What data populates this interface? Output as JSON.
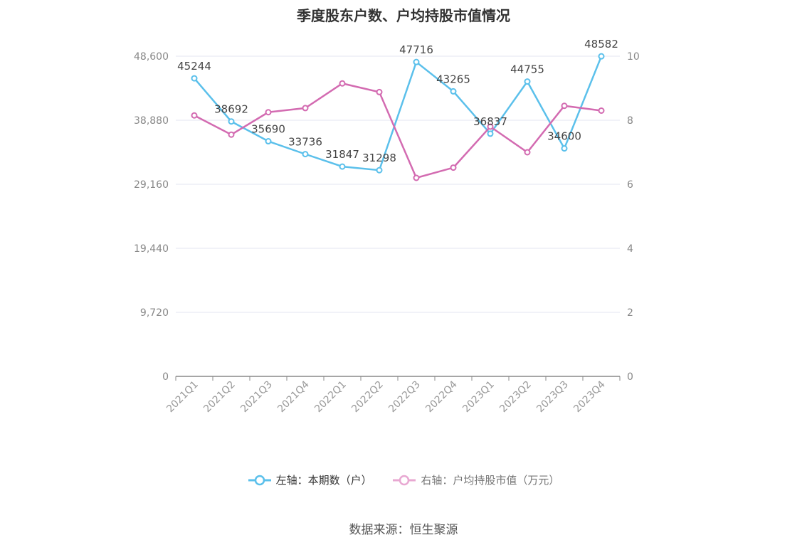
{
  "chart_data": {
    "type": "line",
    "title": "季度股东户数、户均持股市值情况",
    "categories": [
      "2021Q1",
      "2021Q2",
      "2021Q3",
      "2021Q4",
      "2022Q1",
      "2022Q2",
      "2022Q3",
      "2022Q4",
      "2023Q1",
      "2023Q2",
      "2023Q3",
      "2023Q4"
    ],
    "series": [
      {
        "name": "左轴：本期数（户）",
        "axis": "left",
        "color": "#5bc0eb",
        "values": [
          45244,
          38692,
          35690,
          33736,
          31847,
          31298,
          47716,
          43265,
          36837,
          44755,
          34600,
          48582
        ],
        "labels": [
          "45244",
          "38692",
          "35690",
          "33736",
          "31847",
          "31298",
          "47716",
          "43265",
          "36837",
          "44755",
          "34600",
          "48582"
        ]
      },
      {
        "name": "右轴：户均持股市值（万元）",
        "axis": "right",
        "color": "#d36bb1",
        "values": [
          8.15,
          7.55,
          8.25,
          8.38,
          9.15,
          8.88,
          6.2,
          6.52,
          7.8,
          7.0,
          8.45,
          8.3
        ]
      }
    ],
    "y_left": {
      "ticks": [
        "0",
        "9,720",
        "19,440",
        "29,160",
        "38,880",
        "48,600"
      ],
      "values": [
        0,
        9720,
        19440,
        29160,
        38880,
        48600
      ],
      "ylim": [
        0,
        48600
      ]
    },
    "y_right": {
      "ticks": [
        "0",
        "2",
        "4",
        "6",
        "8",
        "10"
      ],
      "values": [
        0,
        2,
        4,
        6,
        8,
        10
      ],
      "ylim": [
        0,
        10
      ]
    },
    "grid": true,
    "legend_position": "bottom"
  },
  "footer": {
    "source": "数据来源：恒生聚源"
  }
}
